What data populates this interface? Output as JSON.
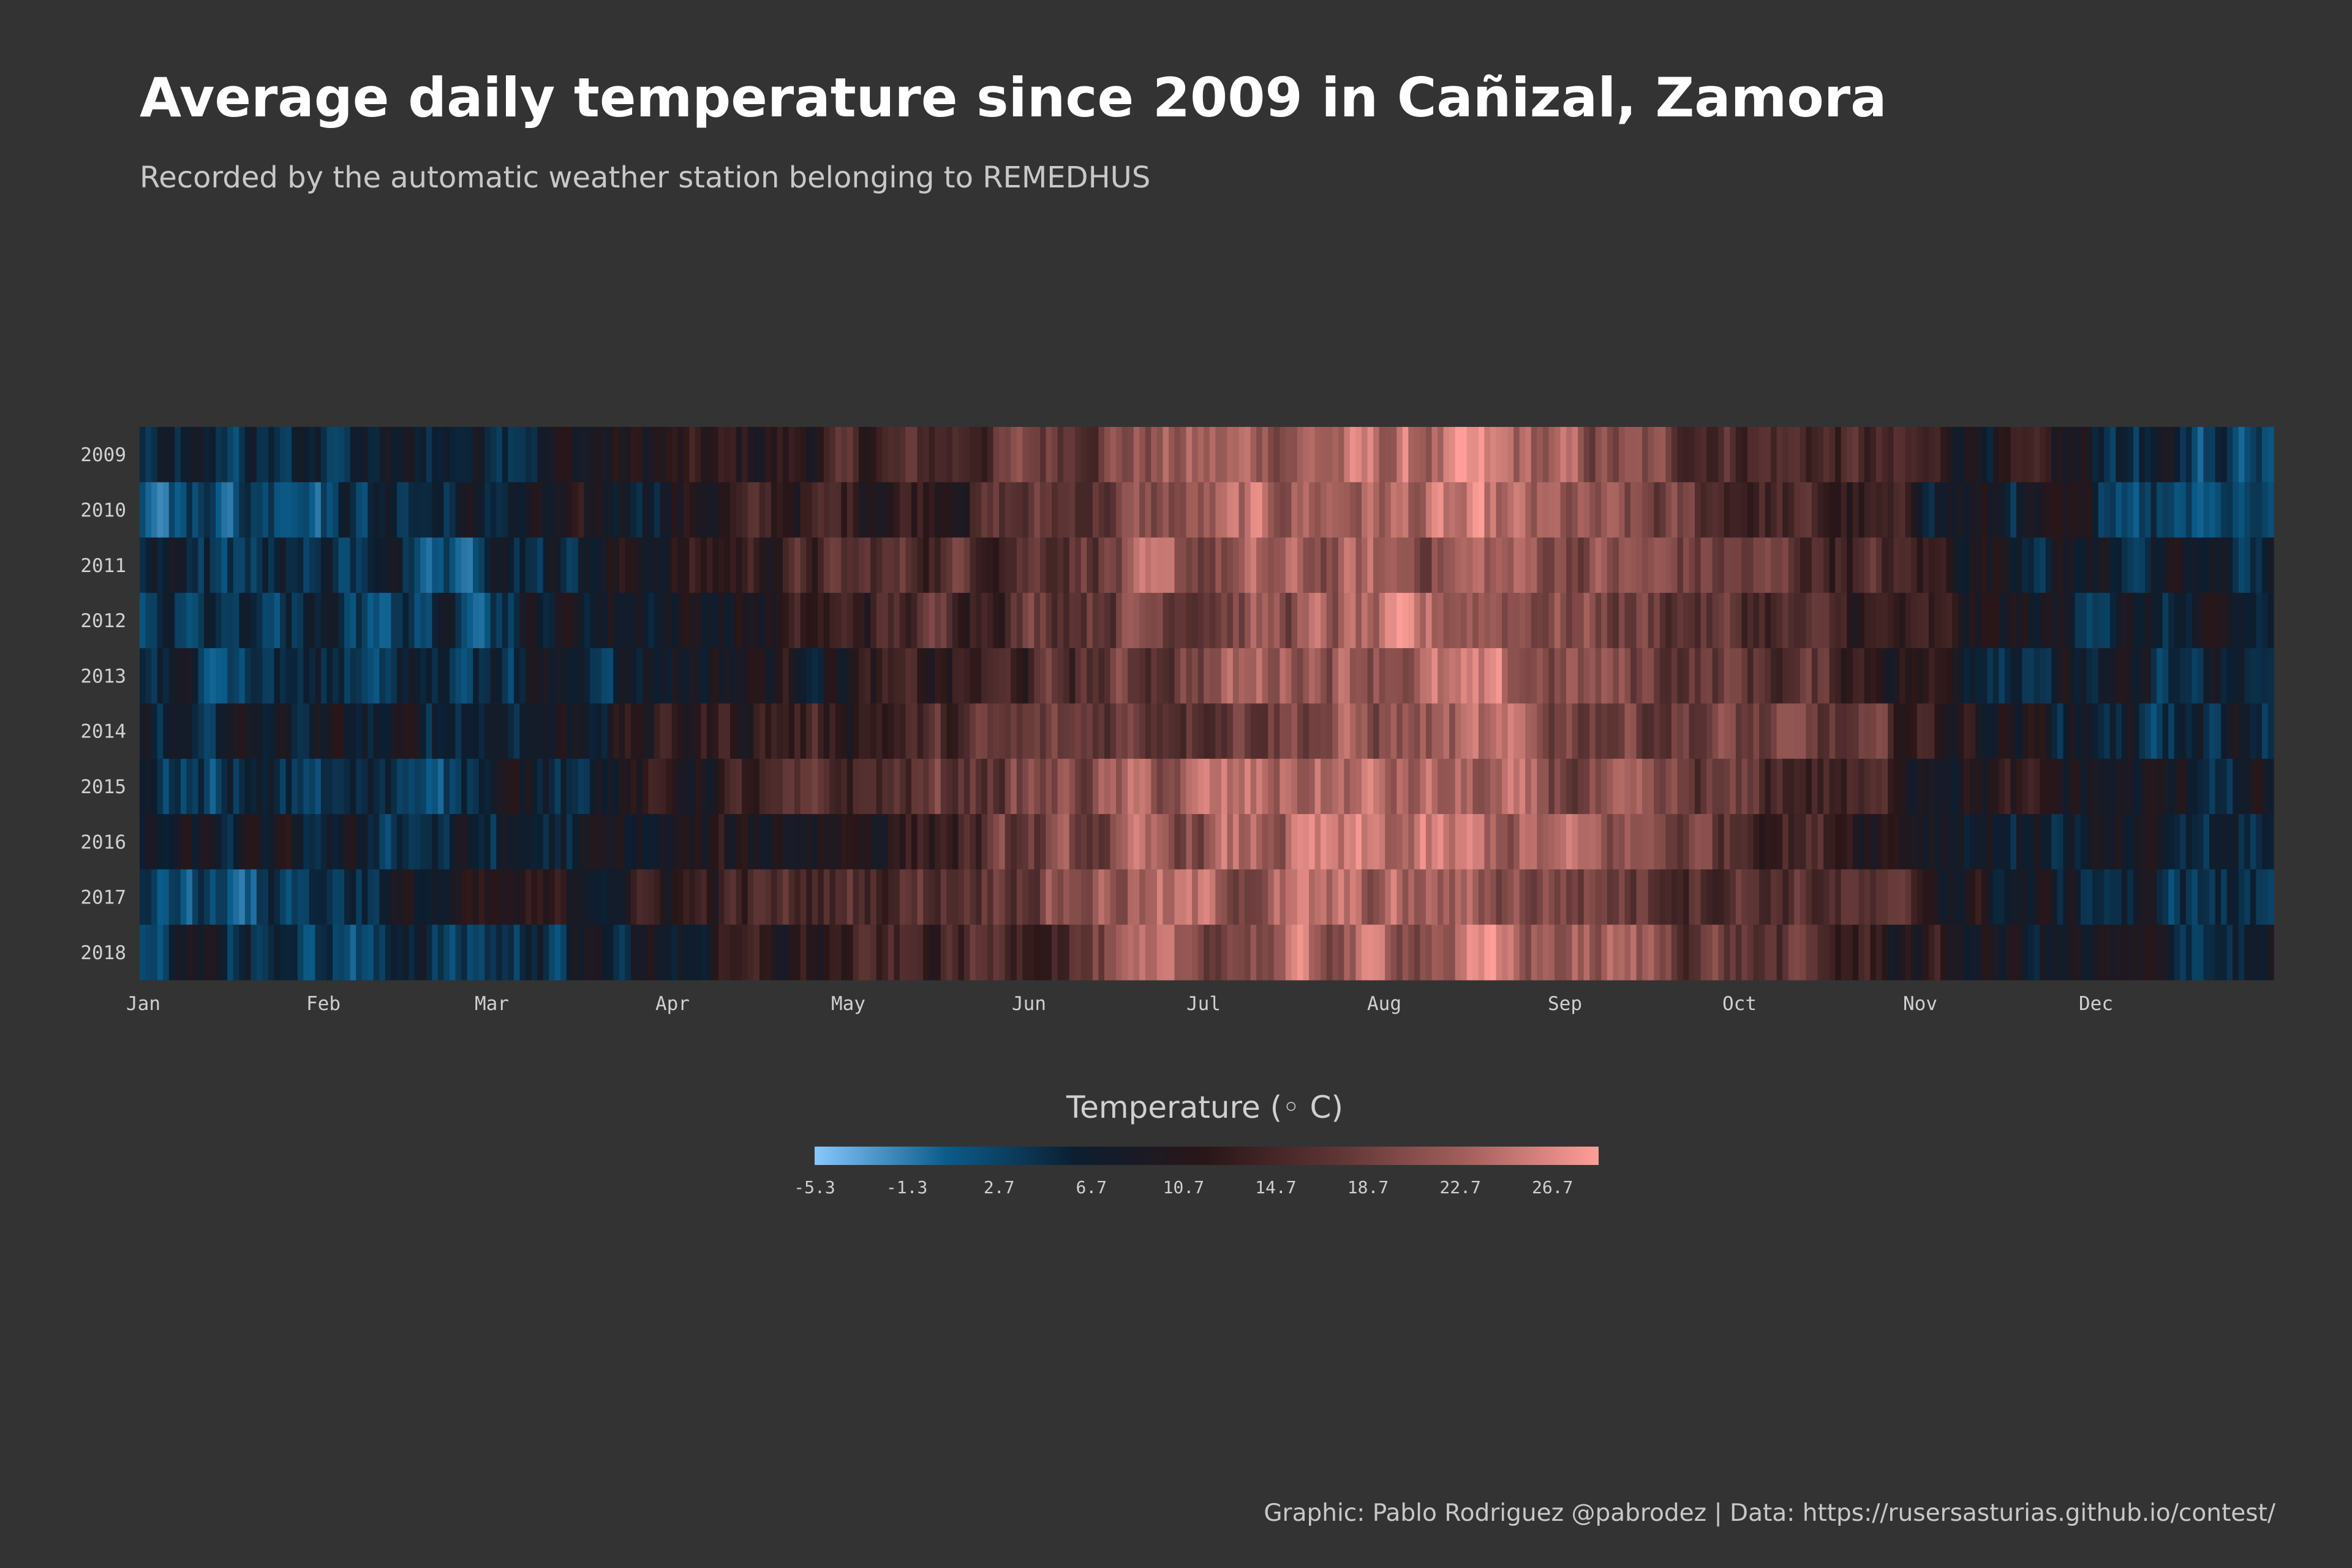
{
  "chart_data": {
    "type": "heatmap",
    "title": "Average daily temperature since 2009 in Cañizal, Zamora",
    "subtitle": "Recorded by the automatic weather station belonging to REMEDHUS",
    "caption": "Graphic: Pablo Rodriguez @pabrodez | Data: https://rusersasturias.github.io/contest/",
    "x_ticks": [
      "Jan",
      "Feb",
      "Mar",
      "Apr",
      "May",
      "Jun",
      "Jul",
      "Aug",
      "Sep",
      "Oct",
      "Nov",
      "Dec"
    ],
    "y_categories": [
      "2009",
      "2010",
      "2011",
      "2012",
      "2013",
      "2014",
      "2015",
      "2016",
      "2017",
      "2018"
    ],
    "days_per_row": 365,
    "value_range": [
      -5.3,
      28.7
    ],
    "monthly_mean_by_year": {
      "2009": [
        4.0,
        6.0,
        9.0,
        11.0,
        15.0,
        21.0,
        23.0,
        24.0,
        18.5,
        15.0,
        10.0,
        4.0
      ],
      "2010": [
        3.5,
        5.5,
        7.0,
        12.5,
        14.0,
        18.5,
        23.5,
        23.0,
        18.0,
        13.0,
        7.0,
        4.0
      ],
      "2011": [
        6.0,
        4.5,
        8.0,
        13.5,
        16.5,
        19.5,
        21.0,
        22.5,
        20.0,
        16.0,
        9.5,
        5.5
      ],
      "2012": [
        4.0,
        3.5,
        8.5,
        9.5,
        16.0,
        20.0,
        21.0,
        23.5,
        18.5,
        13.5,
        8.5,
        5.5
      ],
      "2013": [
        5.0,
        5.0,
        7.5,
        10.0,
        11.5,
        17.0,
        24.0,
        22.5,
        19.0,
        15.5,
        8.0,
        4.0
      ],
      "2014": [
        6.5,
        6.5,
        9.0,
        13.5,
        14.0,
        18.5,
        20.5,
        21.5,
        19.5,
        16.5,
        10.0,
        4.5
      ],
      "2015": [
        3.5,
        4.0,
        8.5,
        12.5,
        17.0,
        21.0,
        24.0,
        22.0,
        17.5,
        14.5,
        10.0,
        7.0
      ],
      "2016": [
        6.5,
        5.5,
        6.0,
        9.5,
        13.5,
        19.5,
        23.5,
        23.5,
        20.5,
        14.5,
        7.5,
        5.0
      ],
      "2017": [
        3.0,
        7.0,
        10.0,
        14.0,
        17.5,
        23.0,
        22.5,
        22.0,
        18.5,
        16.5,
        8.0,
        4.5
      ],
      "2018": [
        5.0,
        3.0,
        6.5,
        10.5,
        14.0,
        19.0,
        22.0,
        24.0,
        21.0,
        14.0,
        8.0,
        6.5
      ]
    },
    "colorscale": [
      "#87c8ff",
      "#0b5c8a",
      "#0c1e30",
      "#2a1618",
      "#5e3535",
      "#a3605c",
      "#ff9e98"
    ],
    "legend": {
      "title": "Temperature (◦ C)",
      "ticks": [
        "-5.3",
        "-1.3",
        "2.7",
        "6.7",
        "10.7",
        "14.7",
        "18.7",
        "22.7",
        "26.7"
      ],
      "placement": "bottom-center"
    }
  },
  "colors": {
    "background": "#333333",
    "title": "#ffffff",
    "text": "#d0d0d0"
  }
}
